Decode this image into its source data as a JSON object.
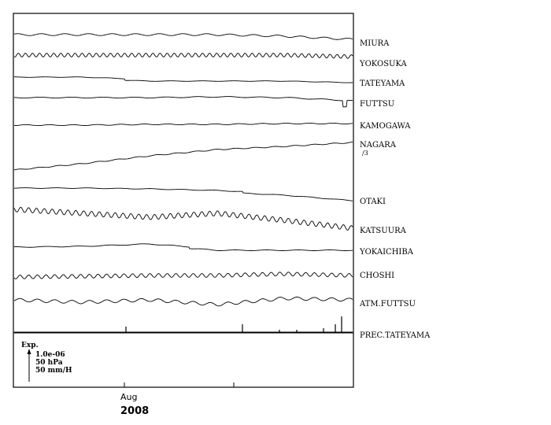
{
  "chart_data": {
    "type": "line",
    "title": "",
    "series": [
      {
        "name": "MIURA"
      },
      {
        "name": "YOKOSUKA"
      },
      {
        "name": "TATEYAMA"
      },
      {
        "name": "FUTTSU"
      },
      {
        "name": "KAMOGAWA"
      },
      {
        "name": "NAGARA",
        "note": "/3"
      },
      {
        "name": "OTAKI"
      },
      {
        "name": "KATSUURA"
      },
      {
        "name": "YOKAICHIBA"
      },
      {
        "name": "CHOSHI"
      },
      {
        "name": "ATM.FUTTSU"
      },
      {
        "name": "PREC.TATEYAMA"
      }
    ],
    "x_ticks": [
      {
        "label": "Aug"
      }
    ],
    "x_year": "2008",
    "legend": {
      "title": "Exp.",
      "items": [
        "1.0e-06",
        "50 hPa",
        "50 mm/H"
      ]
    },
    "grid": false
  }
}
